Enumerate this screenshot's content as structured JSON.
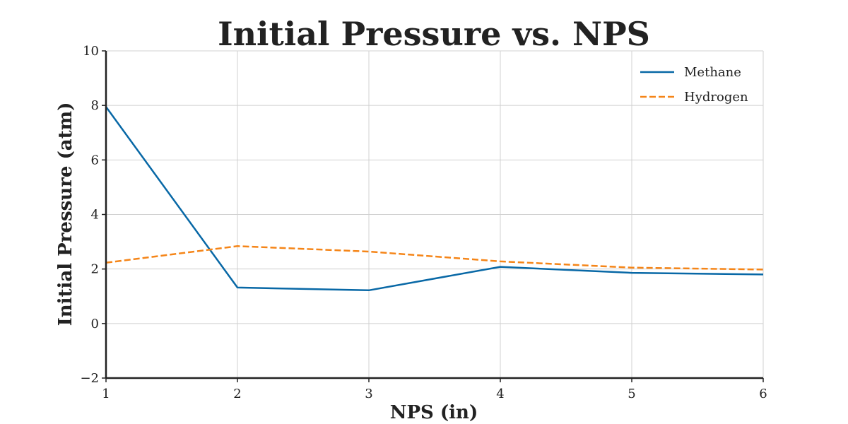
{
  "chart_data": {
    "type": "line",
    "title": "Initial Pressure vs. NPS",
    "xlabel": "NPS (in)",
    "ylabel": "Initial Pressure (atm)",
    "x": [
      1,
      2,
      3,
      4,
      5,
      6
    ],
    "xlim": [
      1,
      6
    ],
    "ylim": [
      -2,
      10
    ],
    "xticks": [
      1,
      2,
      3,
      4,
      5,
      6
    ],
    "yticks": [
      -2,
      0,
      2,
      4,
      6,
      8,
      10
    ],
    "ytick_labels": [
      "−2",
      "0",
      "2",
      "4",
      "6",
      "8",
      "10"
    ],
    "grid": true,
    "legend_position": "top-right",
    "series": [
      {
        "name": "Methane",
        "values": [
          7.95,
          1.32,
          1.22,
          2.08,
          1.86,
          1.8
        ],
        "color": "#0868a6",
        "style": "solid"
      },
      {
        "name": "Hydrogen",
        "values": [
          2.23,
          2.84,
          2.64,
          2.28,
          2.05,
          1.98
        ],
        "color": "#f58518",
        "style": "dashed"
      }
    ]
  }
}
